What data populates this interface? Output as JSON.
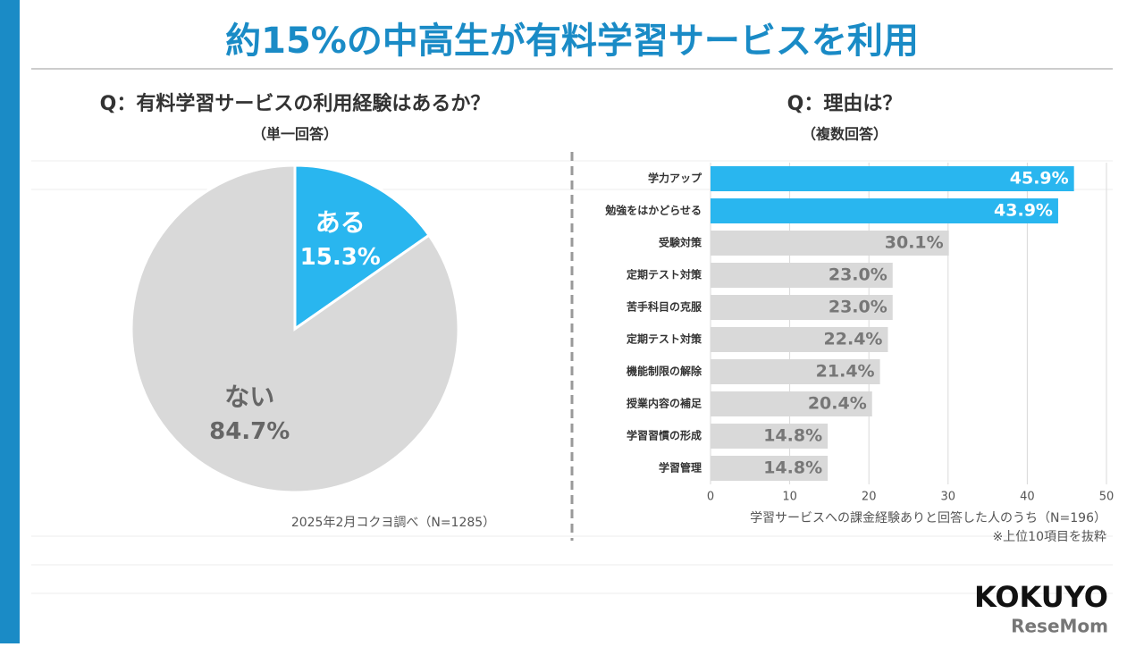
{
  "title": "約15%の中高生が有料学習サービスを利用",
  "chart_data": [
    {
      "type": "pie",
      "title": "Q：有料学習サービスの利用経験はあるか？",
      "subtitle": "（単一回答）",
      "categories": [
        "ある",
        "ない"
      ],
      "values": [
        15.3,
        84.7
      ],
      "value_labels": [
        "15.3%",
        "84.7%"
      ],
      "colors": [
        "#29b6ef",
        "#d9d9d9"
      ],
      "note": "2025年2月コクヨ調べ（N=1285）"
    },
    {
      "type": "barh",
      "title": "Q：理由は？",
      "subtitle": "（複数回答）",
      "categories": [
        "学力アップ",
        "勉強をはかどらせる",
        "受験対策",
        "定期テスト対策",
        "苦手科目の克服",
        "定期テスト対策",
        "機能制限の解除",
        "授業内容の補足",
        "学習習慣の形成",
        "学習管理"
      ],
      "values": [
        45.9,
        43.9,
        30.1,
        23,
        23,
        22.4,
        21.4,
        20.4,
        14.8,
        14.8
      ],
      "value_labels": [
        "45.9%",
        "43.9%",
        "30.1%",
        "23.0%",
        "23.0%",
        "22.4%",
        "21.4%",
        "20.4%",
        "14.8%",
        "14.8%"
      ],
      "colors": [
        "#29b6ef",
        "#29b6ef",
        "#d9d9d9",
        "#d9d9d9",
        "#d9d9d9",
        "#d9d9d9",
        "#d9d9d9",
        "#d9d9d9",
        "#d9d9d9",
        "#d9d9d9"
      ],
      "xlim": [
        0,
        50
      ],
      "xticks": [
        0,
        10,
        20,
        30,
        40,
        50
      ],
      "grid": true,
      "notes": [
        "学習サービスへの課金経験ありと回答した人のうち（N=196）",
        "※上位10項目を抜粋"
      ]
    }
  ],
  "logos": [
    "KOKUYO",
    "ReseMom"
  ]
}
